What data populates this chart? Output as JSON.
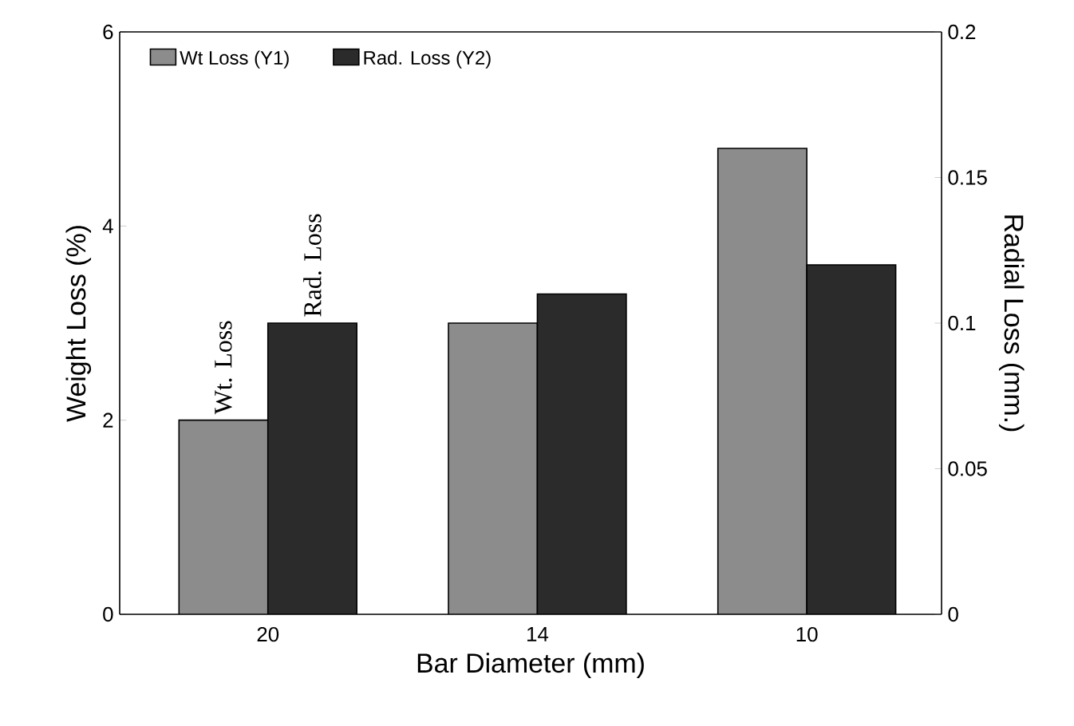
{
  "chart_data": {
    "type": "bar",
    "xlabel": "Bar Diameter   (mm)",
    "ylabel": "Weight Loss   (%)",
    "y2label": "Radial Loss   (mm.)",
    "categories": [
      "20",
      "14",
      "10"
    ],
    "series": [
      {
        "name": "Wt Loss (Y1)",
        "color": "#8c8c8c",
        "values": [
          2,
          3,
          4.8
        ]
      },
      {
        "name": "Rad. Loss (Y2)",
        "color": "#2b2b2b",
        "values": [
          0.1,
          0.11,
          0.12
        ],
        "axis": "y2"
      }
    ],
    "ylim": [
      0,
      6
    ],
    "yticks": [
      0,
      2,
      4,
      6
    ],
    "y2lim": [
      0,
      0.2
    ],
    "y2ticks": [
      0,
      0.05,
      0.1,
      0.15,
      0.2
    ],
    "annotations": [
      "Wt. Loss",
      "Rad. Loss"
    ],
    "legend": "top left",
    "grid": false
  }
}
